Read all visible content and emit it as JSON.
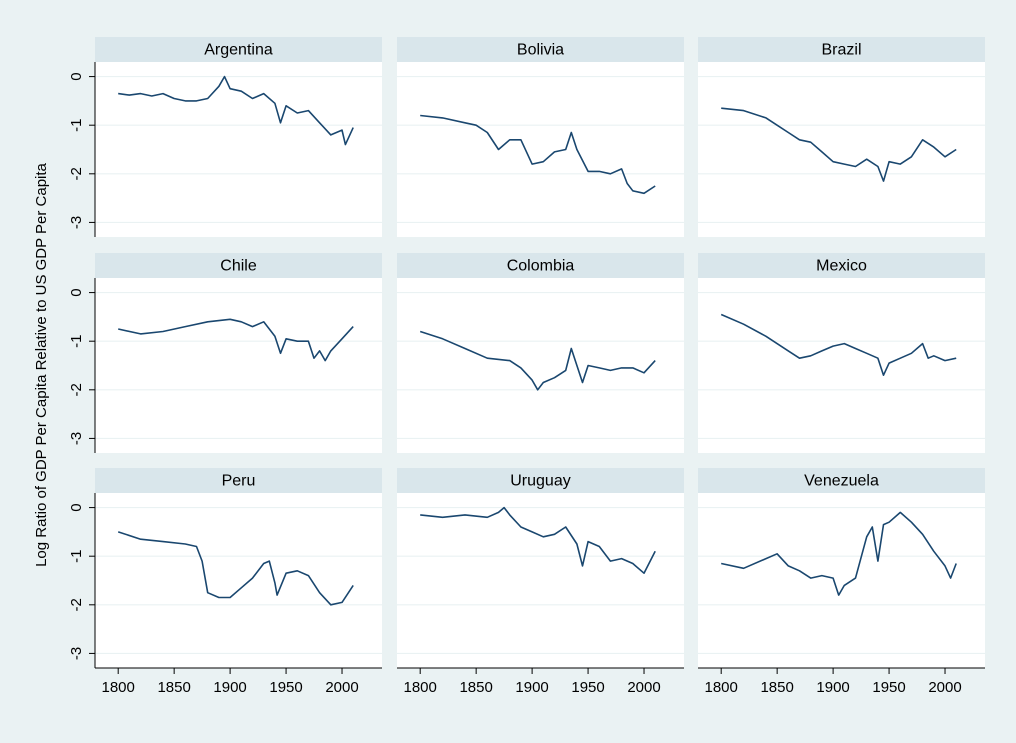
{
  "chart_data": {
    "type": "line",
    "ylabel": "Log Ratio of GDP Per Capita Relative to US GDP Per Capita",
    "color": "#1a476f",
    "grid": true,
    "xlim": [
      1790,
      2025
    ],
    "xticks": [
      1800,
      1850,
      1900,
      1950,
      2000
    ],
    "ylim": [
      -3.3,
      0.3
    ],
    "yticks": [
      0,
      -1,
      -2,
      -3
    ],
    "panels": [
      {
        "title": "Argentina",
        "x": [
          1800,
          1810,
          1820,
          1830,
          1840,
          1850,
          1860,
          1870,
          1880,
          1890,
          1895,
          1900,
          1910,
          1920,
          1930,
          1940,
          1945,
          1950,
          1960,
          1970,
          1980,
          1990,
          2000,
          2003,
          2010
        ],
        "values": [
          -0.35,
          -0.38,
          -0.35,
          -0.4,
          -0.35,
          -0.45,
          -0.5,
          -0.5,
          -0.45,
          -0.2,
          0.0,
          -0.25,
          -0.3,
          -0.45,
          -0.35,
          -0.55,
          -0.95,
          -0.6,
          -0.75,
          -0.7,
          -0.95,
          -1.2,
          -1.1,
          -1.4,
          -1.05
        ]
      },
      {
        "title": "Bolivia",
        "x": [
          1800,
          1820,
          1840,
          1850,
          1860,
          1870,
          1880,
          1890,
          1900,
          1910,
          1920,
          1930,
          1935,
          1940,
          1950,
          1960,
          1970,
          1980,
          1985,
          1990,
          2000,
          2010
        ],
        "values": [
          -0.8,
          -0.85,
          -0.95,
          -1.0,
          -1.15,
          -1.5,
          -1.3,
          -1.3,
          -1.8,
          -1.75,
          -1.55,
          -1.5,
          -1.15,
          -1.5,
          -1.95,
          -1.95,
          -2.0,
          -1.9,
          -2.2,
          -2.35,
          -2.4,
          -2.25
        ]
      },
      {
        "title": "Brazil",
        "x": [
          1800,
          1820,
          1840,
          1850,
          1860,
          1870,
          1880,
          1890,
          1900,
          1910,
          1920,
          1930,
          1940,
          1945,
          1950,
          1960,
          1970,
          1980,
          1990,
          2000,
          2010
        ],
        "values": [
          -0.65,
          -0.7,
          -0.85,
          -1.0,
          -1.15,
          -1.3,
          -1.35,
          -1.55,
          -1.75,
          -1.8,
          -1.85,
          -1.7,
          -1.85,
          -2.15,
          -1.75,
          -1.8,
          -1.65,
          -1.3,
          -1.45,
          -1.65,
          -1.5
        ]
      },
      {
        "title": "Chile",
        "x": [
          1800,
          1820,
          1840,
          1860,
          1880,
          1900,
          1910,
          1920,
          1930,
          1940,
          1945,
          1950,
          1960,
          1970,
          1975,
          1980,
          1985,
          1990,
          2000,
          2010
        ],
        "values": [
          -0.75,
          -0.85,
          -0.8,
          -0.7,
          -0.6,
          -0.55,
          -0.6,
          -0.7,
          -0.6,
          -0.9,
          -1.25,
          -0.95,
          -1.0,
          -1.0,
          -1.35,
          -1.2,
          -1.4,
          -1.2,
          -0.95,
          -0.7
        ]
      },
      {
        "title": "Colombia",
        "x": [
          1800,
          1820,
          1840,
          1860,
          1880,
          1890,
          1900,
          1905,
          1910,
          1920,
          1930,
          1935,
          1940,
          1945,
          1950,
          1960,
          1970,
          1980,
          1990,
          2000,
          2010
        ],
        "values": [
          -0.8,
          -0.95,
          -1.15,
          -1.35,
          -1.4,
          -1.55,
          -1.8,
          -2.0,
          -1.85,
          -1.75,
          -1.6,
          -1.15,
          -1.5,
          -1.85,
          -1.5,
          -1.55,
          -1.6,
          -1.55,
          -1.55,
          -1.65,
          -1.4
        ]
      },
      {
        "title": "Mexico",
        "x": [
          1800,
          1820,
          1840,
          1860,
          1870,
          1880,
          1890,
          1900,
          1910,
          1920,
          1930,
          1940,
          1945,
          1950,
          1960,
          1970,
          1980,
          1985,
          1990,
          2000,
          2010
        ],
        "values": [
          -0.45,
          -0.65,
          -0.9,
          -1.2,
          -1.35,
          -1.3,
          -1.2,
          -1.1,
          -1.05,
          -1.15,
          -1.25,
          -1.35,
          -1.7,
          -1.45,
          -1.35,
          -1.25,
          -1.05,
          -1.35,
          -1.3,
          -1.4,
          -1.35
        ]
      },
      {
        "title": "Peru",
        "x": [
          1800,
          1820,
          1840,
          1860,
          1870,
          1875,
          1880,
          1890,
          1900,
          1910,
          1920,
          1930,
          1935,
          1940,
          1942,
          1950,
          1960,
          1970,
          1980,
          1990,
          2000,
          2010
        ],
        "values": [
          -0.5,
          -0.65,
          -0.7,
          -0.75,
          -0.8,
          -1.1,
          -1.75,
          -1.85,
          -1.85,
          -1.65,
          -1.45,
          -1.15,
          -1.1,
          -1.55,
          -1.8,
          -1.35,
          -1.3,
          -1.4,
          -1.75,
          -2.0,
          -1.95,
          -1.6
        ]
      },
      {
        "title": "Uruguay",
        "x": [
          1800,
          1820,
          1840,
          1860,
          1870,
          1875,
          1880,
          1890,
          1900,
          1910,
          1920,
          1930,
          1940,
          1945,
          1950,
          1960,
          1970,
          1980,
          1990,
          2000,
          2010
        ],
        "values": [
          -0.15,
          -0.2,
          -0.15,
          -0.2,
          -0.1,
          0.0,
          -0.15,
          -0.4,
          -0.5,
          -0.6,
          -0.55,
          -0.4,
          -0.75,
          -1.2,
          -0.7,
          -0.8,
          -1.1,
          -1.05,
          -1.15,
          -1.35,
          -0.9
        ]
      },
      {
        "title": "Venezuela",
        "x": [
          1800,
          1820,
          1840,
          1850,
          1860,
          1870,
          1880,
          1890,
          1900,
          1905,
          1910,
          1920,
          1930,
          1935,
          1940,
          1945,
          1950,
          1960,
          1970,
          1980,
          1990,
          2000,
          2005,
          2010
        ],
        "values": [
          -1.15,
          -1.25,
          -1.05,
          -0.95,
          -1.2,
          -1.3,
          -1.45,
          -1.4,
          -1.45,
          -1.8,
          -1.6,
          -1.45,
          -0.6,
          -0.4,
          -1.1,
          -0.35,
          -0.3,
          -0.1,
          -0.3,
          -0.55,
          -0.9,
          -1.2,
          -1.45,
          -1.15
        ]
      }
    ]
  }
}
